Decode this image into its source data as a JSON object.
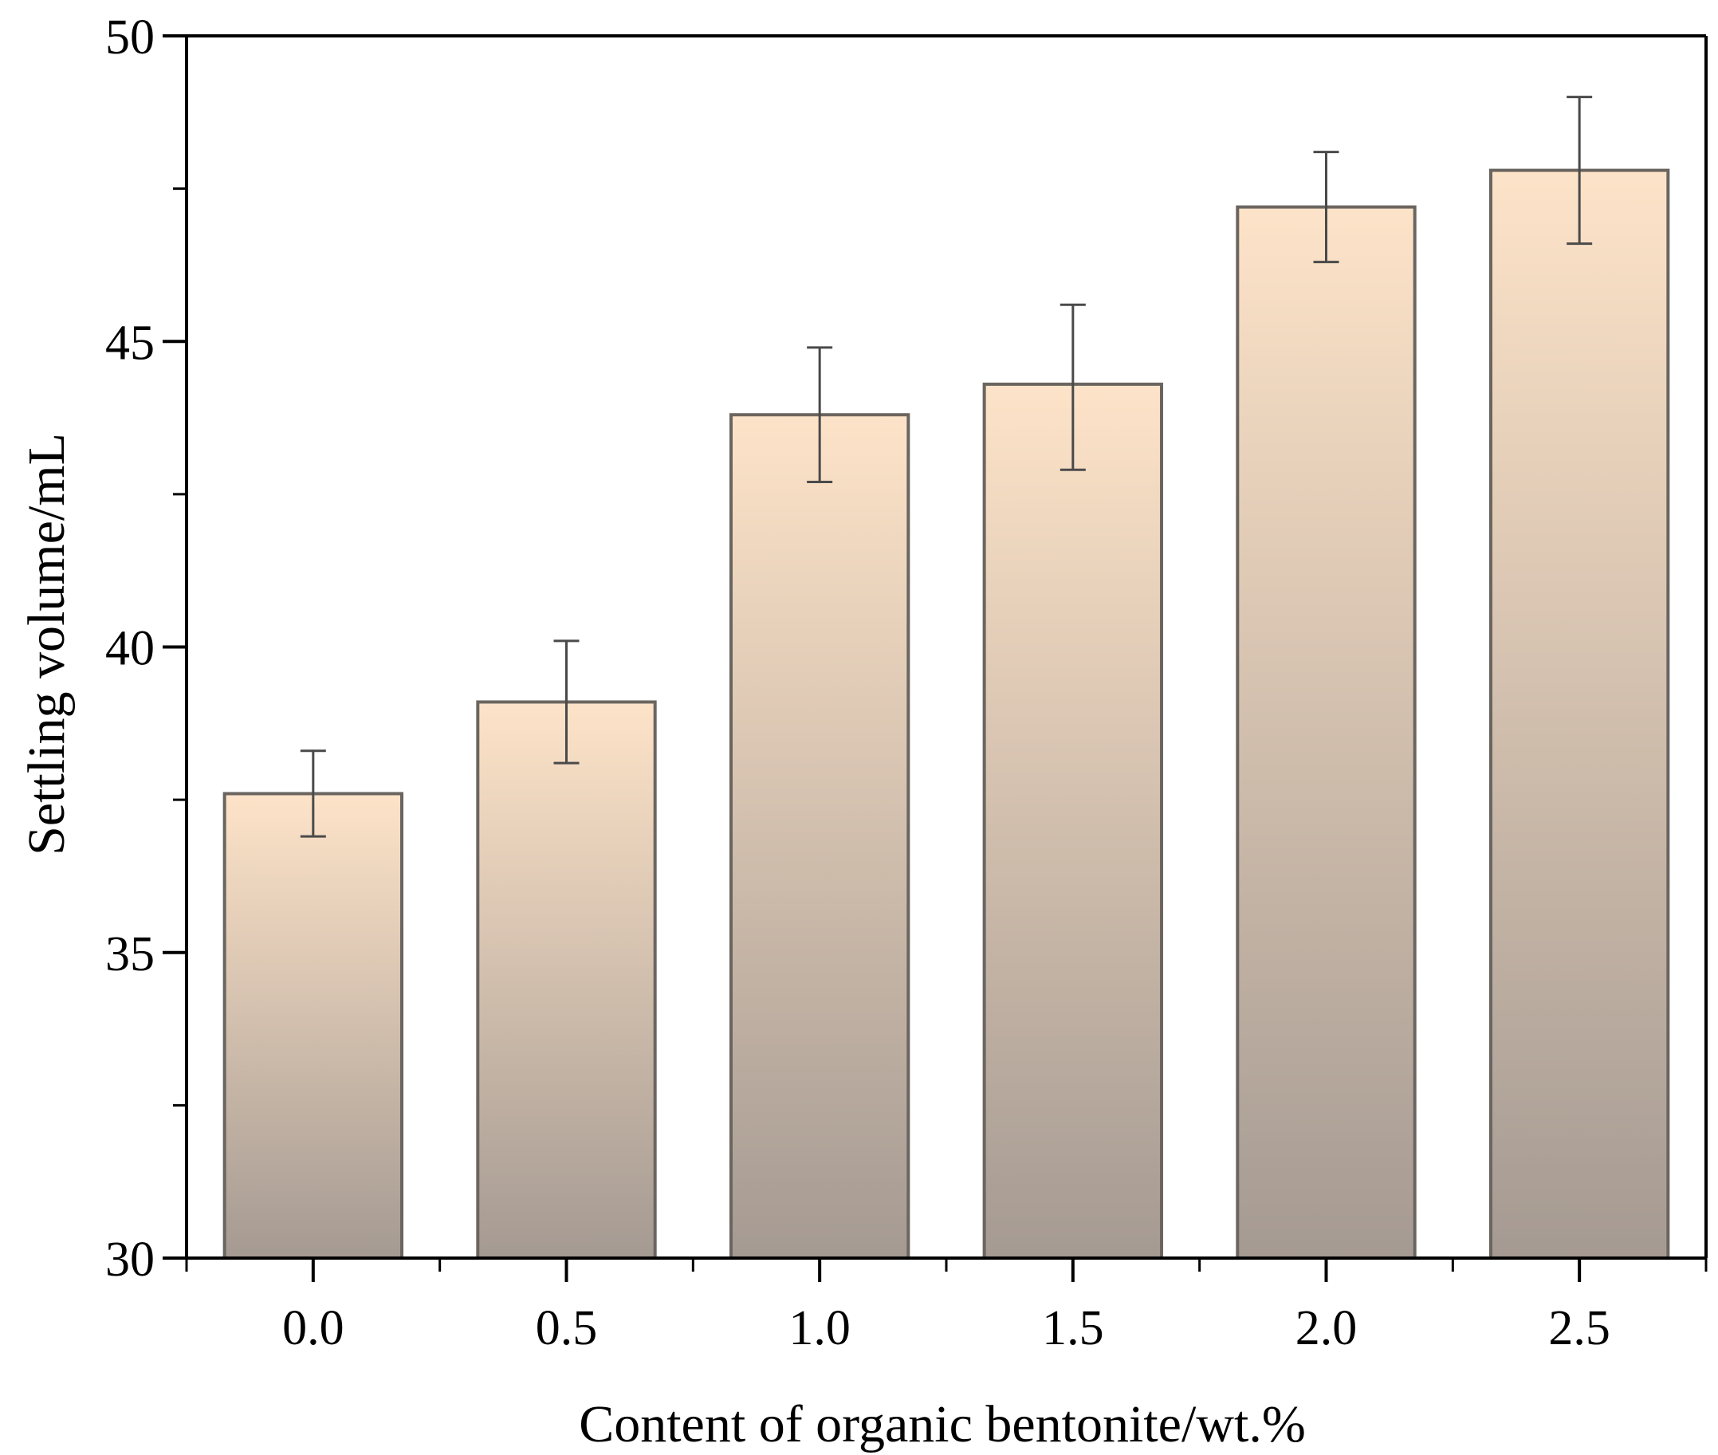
{
  "chart_data": {
    "type": "bar",
    "title": "",
    "xlabel": "Content of organic bentonite/wt.%",
    "ylabel": "Settling volume/mL",
    "categories": [
      "0.0",
      "0.5",
      "1.0",
      "1.5",
      "2.0",
      "2.5"
    ],
    "x_values": [
      0.0,
      0.5,
      1.0,
      1.5,
      2.0,
      2.5
    ],
    "values": [
      37.6,
      39.1,
      43.8,
      44.3,
      47.2,
      47.8
    ],
    "error_low": [
      36.9,
      38.1,
      42.7,
      42.9,
      46.3,
      46.6
    ],
    "error_high": [
      38.3,
      40.1,
      44.9,
      45.6,
      48.1,
      49.0
    ],
    "xlim": [
      -0.25,
      2.75
    ],
    "ylim": [
      30,
      50
    ],
    "y_major_ticks": [
      30,
      35,
      40,
      45,
      50
    ],
    "y_tick_labels": [
      "30",
      "35",
      "40",
      "45",
      "50"
    ],
    "y_minor_ticks": [
      32.5,
      37.5,
      42.5,
      47.5
    ],
    "x_minor_ticks": [
      -0.25,
      0.25,
      0.75,
      1.25,
      1.75,
      2.25,
      2.75
    ],
    "grid": false,
    "legend": "none",
    "colors": {
      "bar_top": "#fde3c8",
      "bar_bottom": "#a59a92",
      "bar_stroke": "#6b6560",
      "errorbar": "#4a4a4a",
      "axis": "#000000"
    }
  }
}
